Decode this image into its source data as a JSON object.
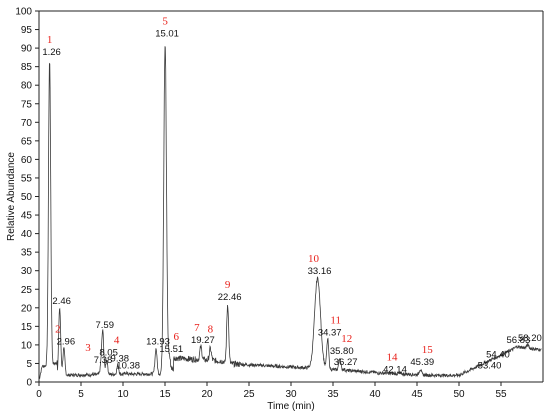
{
  "chart_data": {
    "type": "line",
    "xlabel": "Time (min)",
    "ylabel": "Relative Abundance",
    "xlim": [
      0,
      60
    ],
    "ylim": [
      0,
      100
    ],
    "x_ticks": [
      0,
      5,
      10,
      15,
      20,
      25,
      30,
      35,
      40,
      45,
      50,
      55
    ],
    "y_ticks": [
      0,
      5,
      10,
      15,
      20,
      25,
      30,
      35,
      40,
      45,
      50,
      55,
      60,
      65,
      70,
      75,
      80,
      85,
      90,
      95,
      100
    ],
    "grid": false,
    "line_color": "#3a3a3a",
    "number_color": "#e8201a",
    "peaks": [
      {
        "rt": 1.26,
        "height": 87,
        "label": "1.26",
        "number": "1"
      },
      {
        "rt": 2.46,
        "height": 20,
        "label": "2.46",
        "number": ""
      },
      {
        "rt": 2.96,
        "height": 9,
        "label": "2.96",
        "number": "2"
      },
      {
        "rt": 7.38,
        "height": 4,
        "label": "7.38",
        "number": "3"
      },
      {
        "rt": 7.59,
        "height": 13.5,
        "label": "7.59",
        "number": ""
      },
      {
        "rt": 8.05,
        "height": 6,
        "label": "8.05",
        "number": "4"
      },
      {
        "rt": 9.38,
        "height": 4.5,
        "label": "9.38",
        "number": ""
      },
      {
        "rt": 10.38,
        "height": 2.5,
        "label": "10.38",
        "number": ""
      },
      {
        "rt": 13.93,
        "height": 9,
        "label": "13.93",
        "number": ""
      },
      {
        "rt": 15.01,
        "height": 92,
        "label": "15.01",
        "number": "5"
      },
      {
        "rt": 15.51,
        "height": 7,
        "label": "15.51",
        "number": "6"
      },
      {
        "rt": 19.27,
        "height": 9.5,
        "label": "19.27",
        "number": "7"
      },
      {
        "rt": 20.4,
        "height": 9,
        "label": "",
        "number": "8"
      },
      {
        "rt": 22.46,
        "height": 21,
        "label": "22.46",
        "number": "9"
      },
      {
        "rt": 33.16,
        "height": 28,
        "label": "33.16",
        "number": "10"
      },
      {
        "rt": 34.37,
        "height": 11.5,
        "label": "34.37",
        "number": "11"
      },
      {
        "rt": 35.8,
        "height": 6.5,
        "label": "35.80",
        "number": "12"
      },
      {
        "rt": 36.27,
        "height": 3.5,
        "label": "36.27",
        "number": ""
      },
      {
        "rt": 42.14,
        "height": 1.5,
        "label": "42.14",
        "number": "14"
      },
      {
        "rt": 45.39,
        "height": 3.5,
        "label": "45.39",
        "number": "15"
      },
      {
        "rt": 53.4,
        "height": 2.5,
        "label": "53.40",
        "number": ""
      },
      {
        "rt": 54.4,
        "height": 5.5,
        "label": "54.40",
        "number": ""
      },
      {
        "rt": 56.83,
        "height": 9.5,
        "label": "56.83",
        "number": ""
      },
      {
        "rt": 58.2,
        "height": 10,
        "label": "58.20",
        "number": ""
      }
    ]
  }
}
